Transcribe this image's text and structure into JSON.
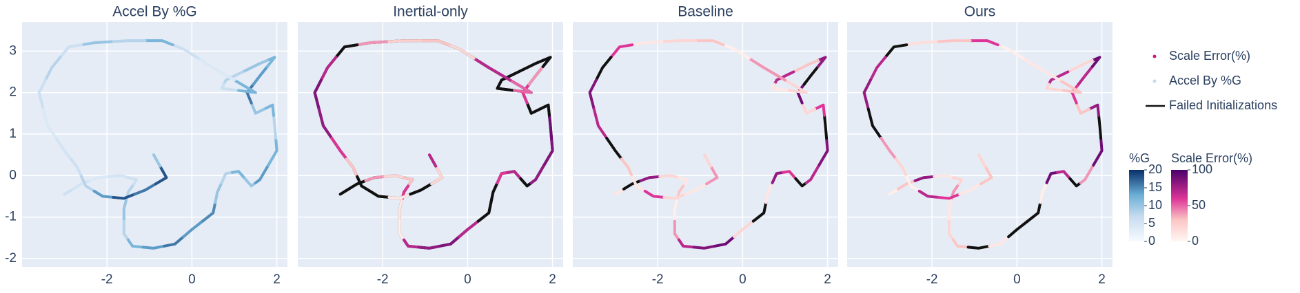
{
  "chart_data": [
    {
      "type": "trajectory",
      "title": "Accel By %G",
      "colorbar": 0,
      "ytick_labels": true,
      "xlim": [
        -4,
        2.25
      ],
      "ylim": [
        -2.2,
        3.7
      ],
      "xticks": [
        -2,
        0,
        2
      ],
      "yticks": [
        -2,
        -1,
        0,
        1,
        2,
        3
      ],
      "grid": true,
      "x": [
        -3.0,
        -2.6,
        -2.2,
        -1.7,
        -1.3,
        -1.5,
        -1.6,
        -1.6,
        -1.4,
        -0.9,
        -0.4,
        0.0,
        0.5,
        0.6,
        0.8,
        1.1,
        1.4,
        1.6,
        2.0,
        1.95,
        1.9,
        1.5,
        1.3,
        1.6,
        1.95,
        1.6,
        0.8,
        0.7,
        1.5,
        0.5,
        -0.2,
        -0.7,
        -1.5,
        -2.3,
        -2.9,
        -3.3,
        -3.6,
        -3.4,
        -3.0,
        -2.7,
        -2.5,
        -2.1,
        -1.6,
        -1.1,
        -0.6,
        -0.9
      ],
      "y": [
        -0.45,
        -0.2,
        -0.05,
        0.0,
        -0.1,
        -0.4,
        -0.8,
        -1.4,
        -1.7,
        -1.75,
        -1.65,
        -1.3,
        -0.9,
        -0.4,
        0.05,
        0.1,
        -0.25,
        -0.1,
        0.6,
        1.2,
        1.7,
        1.5,
        2.0,
        2.4,
        2.85,
        2.7,
        2.3,
        2.1,
        2.0,
        2.6,
        3.05,
        3.25,
        3.25,
        3.2,
        3.1,
        2.6,
        2.0,
        1.2,
        0.6,
        0.2,
        -0.25,
        -0.5,
        -0.55,
        -0.35,
        -0.05,
        0.5
      ],
      "values": [
        6,
        5,
        4,
        5,
        6,
        8,
        10,
        8,
        12,
        14,
        16,
        14,
        15,
        10,
        8,
        12,
        10,
        14,
        12,
        8,
        12,
        10,
        16,
        14,
        12,
        10,
        8,
        6,
        12,
        4,
        6,
        12,
        8,
        10,
        6,
        8,
        6,
        4,
        5,
        6,
        8,
        14,
        18,
        16,
        18,
        10
      ]
    },
    {
      "type": "trajectory",
      "title": "Inertial-only",
      "colorbar": 1,
      "ytick_labels": false,
      "xlim": [
        -4,
        2.25
      ],
      "ylim": [
        -2.2,
        3.7
      ],
      "xticks": [
        -2,
        0,
        2
      ],
      "yticks": [
        -2,
        -1,
        0,
        1,
        2,
        3
      ],
      "grid": true,
      "x": [
        -3.0,
        -2.6,
        -2.2,
        -1.7,
        -1.3,
        -1.5,
        -1.6,
        -1.6,
        -1.4,
        -0.9,
        -0.4,
        0.0,
        0.5,
        0.6,
        0.8,
        1.1,
        1.4,
        1.6,
        2.0,
        1.95,
        1.9,
        1.5,
        1.3,
        1.6,
        1.95,
        1.6,
        0.8,
        0.7,
        1.5,
        0.5,
        -0.2,
        -0.7,
        -1.5,
        -2.3,
        -2.9,
        -3.3,
        -3.6,
        -3.4,
        -3.0,
        -2.7,
        -2.5,
        -2.1,
        -1.6,
        -1.1,
        -0.6,
        -0.9
      ],
      "y": [
        -0.45,
        -0.2,
        -0.05,
        0.0,
        -0.1,
        -0.4,
        -0.8,
        -1.4,
        -1.7,
        -1.75,
        -1.65,
        -1.3,
        -0.9,
        -0.4,
        0.05,
        0.1,
        -0.25,
        -0.1,
        0.6,
        1.2,
        1.7,
        1.5,
        2.0,
        2.4,
        2.85,
        2.7,
        2.3,
        2.1,
        2.0,
        2.6,
        3.05,
        3.25,
        3.25,
        3.2,
        3.1,
        2.6,
        2.0,
        1.2,
        0.6,
        0.2,
        -0.25,
        -0.5,
        -0.55,
        -0.35,
        -0.05,
        0.5
      ],
      "values": [
        null,
        null,
        40,
        20,
        30,
        60,
        10,
        5,
        70,
        80,
        85,
        70,
        null,
        null,
        60,
        70,
        null,
        80,
        85,
        90,
        null,
        null,
        60,
        40,
        null,
        null,
        null,
        null,
        50,
        70,
        20,
        30,
        25,
        40,
        null,
        70,
        85,
        80,
        60,
        30,
        null,
        null,
        10,
        null,
        20,
        70
      ]
    },
    {
      "type": "trajectory",
      "title": "Baseline",
      "colorbar": 1,
      "ytick_labels": false,
      "xlim": [
        -4,
        2.25
      ],
      "ylim": [
        -2.2,
        3.7
      ],
      "xticks": [
        -2,
        0,
        2
      ],
      "yticks": [
        -2,
        -1,
        0,
        1,
        2,
        3
      ],
      "grid": true,
      "x": [
        -3.0,
        -2.6,
        -2.2,
        -1.7,
        -1.3,
        -1.5,
        -1.6,
        -1.6,
        -1.4,
        -0.9,
        -0.4,
        0.0,
        0.5,
        0.6,
        0.8,
        1.1,
        1.4,
        1.6,
        2.0,
        1.95,
        1.9,
        1.5,
        1.3,
        1.6,
        1.95,
        1.6,
        0.8,
        0.7,
        1.5,
        0.5,
        -0.2,
        -0.7,
        -1.5,
        -2.3,
        -2.9,
        -3.3,
        -3.6,
        -3.4,
        -3.0,
        -2.7,
        -2.5,
        -2.1,
        -1.6,
        -1.1,
        -0.6,
        -0.9
      ],
      "y": [
        -0.45,
        -0.2,
        -0.05,
        0.0,
        -0.1,
        -0.4,
        -0.8,
        -1.4,
        -1.7,
        -1.75,
        -1.65,
        -1.3,
        -0.9,
        -0.4,
        0.05,
        0.1,
        -0.25,
        -0.1,
        0.6,
        1.2,
        1.7,
        1.5,
        2.0,
        2.4,
        2.85,
        2.7,
        2.3,
        2.1,
        2.0,
        2.6,
        3.05,
        3.25,
        3.25,
        3.2,
        3.1,
        2.6,
        2.0,
        1.2,
        0.6,
        0.2,
        -0.25,
        -0.5,
        -0.55,
        -0.35,
        -0.05,
        0.5
      ],
      "values": [
        10,
        null,
        80,
        20,
        10,
        30,
        5,
        40,
        70,
        85,
        90,
        20,
        null,
        10,
        80,
        60,
        null,
        70,
        85,
        null,
        60,
        20,
        90,
        null,
        80,
        30,
        70,
        10,
        20,
        40,
        5,
        30,
        20,
        10,
        60,
        null,
        85,
        70,
        null,
        30,
        10,
        60,
        20,
        10,
        40,
        20
      ]
    },
    {
      "type": "trajectory",
      "title": "Ours",
      "colorbar": 1,
      "ytick_labels": false,
      "xlim": [
        -4,
        2.25
      ],
      "ylim": [
        -2.2,
        3.7
      ],
      "xticks": [
        -2,
        0,
        2
      ],
      "yticks": [
        -2,
        -1,
        0,
        1,
        2,
        3
      ],
      "grid": true,
      "x": [
        -3.0,
        -2.6,
        -2.2,
        -1.7,
        -1.3,
        -1.5,
        -1.6,
        -1.6,
        -1.4,
        -0.9,
        -0.4,
        0.0,
        0.5,
        0.6,
        0.8,
        1.1,
        1.4,
        1.6,
        2.0,
        1.95,
        1.9,
        1.5,
        1.3,
        1.6,
        1.95,
        1.6,
        0.8,
        0.7,
        1.5,
        0.5,
        -0.2,
        -0.7,
        -1.5,
        -2.3,
        -2.9,
        -3.3,
        -3.6,
        -3.4,
        -3.0,
        -2.7,
        -2.5,
        -2.1,
        -1.6,
        -1.1,
        -0.6,
        -0.9
      ],
      "y": [
        -0.45,
        -0.2,
        -0.05,
        0.0,
        -0.1,
        -0.4,
        -0.8,
        -1.4,
        -1.7,
        -1.75,
        -1.65,
        -1.3,
        -0.9,
        -0.4,
        0.05,
        0.1,
        -0.25,
        -0.1,
        0.6,
        1.2,
        1.7,
        1.5,
        2.0,
        2.4,
        2.85,
        2.7,
        2.3,
        2.1,
        2.0,
        2.6,
        3.05,
        3.25,
        3.25,
        3.2,
        3.1,
        2.6,
        2.0,
        1.2,
        0.6,
        0.2,
        -0.25,
        -0.5,
        -0.55,
        -0.35,
        -0.05,
        0.5
      ],
      "values": [
        5,
        30,
        80,
        10,
        20,
        40,
        10,
        20,
        30,
        null,
        10,
        null,
        null,
        5,
        90,
        70,
        null,
        40,
        90,
        null,
        80,
        30,
        60,
        70,
        90,
        20,
        70,
        20,
        30,
        10,
        5,
        60,
        30,
        15,
        null,
        70,
        80,
        null,
        40,
        20,
        5,
        70,
        60,
        10,
        30,
        20
      ]
    }
  ],
  "legend": [
    {
      "name": "Scale Error(%)",
      "color": "#c51b7d",
      "mark": "dot"
    },
    {
      "name": "Accel By %G",
      "color": "#c6dbef",
      "mark": "dot"
    },
    {
      "name": "Failed Initializations",
      "color": "#111111",
      "mark": "line"
    }
  ],
  "colorbars": [
    {
      "title": "%G",
      "lim": [
        0,
        20
      ],
      "ticks": [
        0,
        5,
        10,
        15,
        20
      ],
      "null_color": "#111111",
      "colorscale": [
        [
          0,
          "#f7fbff"
        ],
        [
          0.35,
          "#c6dbef"
        ],
        [
          0.65,
          "#6baed6"
        ],
        [
          1,
          "#08306b"
        ]
      ]
    },
    {
      "title": "Scale Error(%)",
      "lim": [
        0,
        100
      ],
      "ticks": [
        0,
        50,
        100
      ],
      "null_color": "#111111",
      "colorscale": [
        [
          0,
          "#fff7f3"
        ],
        [
          0.3,
          "#fbc5c5"
        ],
        [
          0.6,
          "#dd3497"
        ],
        [
          1,
          "#49006a"
        ]
      ]
    }
  ]
}
